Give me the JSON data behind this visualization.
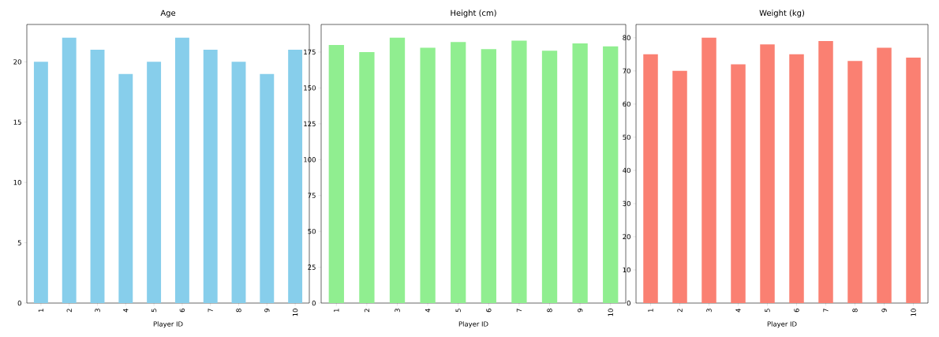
{
  "chart_data": [
    {
      "type": "bar",
      "title": "Age",
      "xlabel": "Player ID",
      "categories": [
        "1",
        "2",
        "3",
        "4",
        "5",
        "6",
        "7",
        "8",
        "9",
        "10"
      ],
      "values": [
        20,
        22,
        21,
        19,
        20,
        22,
        21,
        20,
        19,
        21
      ],
      "color": "#87ceeb",
      "ylim": [
        0,
        23.1
      ],
      "yticks": [
        0,
        5,
        10,
        15,
        20
      ]
    },
    {
      "type": "bar",
      "title": "Height (cm)",
      "xlabel": "Player ID",
      "categories": [
        "1",
        "2",
        "3",
        "4",
        "5",
        "6",
        "7",
        "8",
        "9",
        "10"
      ],
      "values": [
        180,
        175,
        185,
        178,
        182,
        177,
        183,
        176,
        181,
        179
      ],
      "color": "#90ee90",
      "ylim": [
        0,
        194.25
      ],
      "yticks": [
        0,
        25,
        50,
        75,
        100,
        125,
        150,
        175
      ]
    },
    {
      "type": "bar",
      "title": "Weight (kg)",
      "xlabel": "Player ID",
      "categories": [
        "1",
        "2",
        "3",
        "4",
        "5",
        "6",
        "7",
        "8",
        "9",
        "10"
      ],
      "values": [
        75,
        70,
        80,
        72,
        78,
        75,
        79,
        73,
        77,
        74
      ],
      "color": "#fa8072",
      "ylim": [
        0,
        84
      ],
      "yticks": [
        0,
        10,
        20,
        30,
        40,
        50,
        60,
        70,
        80
      ]
    }
  ]
}
